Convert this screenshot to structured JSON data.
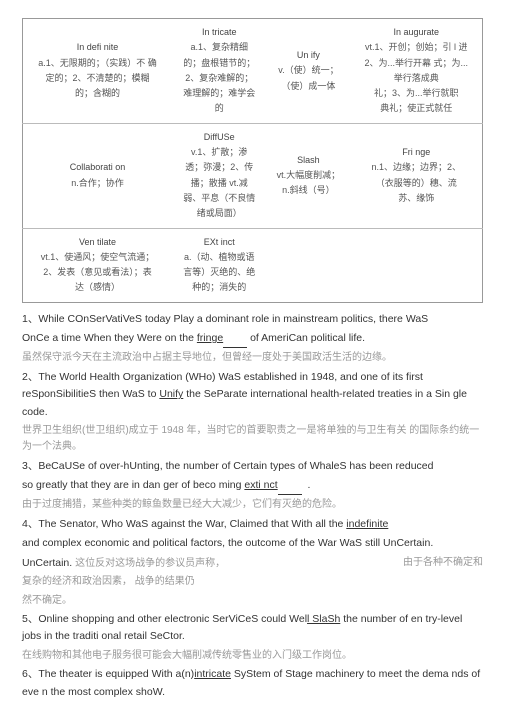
{
  "vocab": [
    {
      "c1": {
        "term": "In defi nite",
        "def": "a.1、无限期的；（实践）不 确\n定的；2、不清楚的；模糊\n的；含糊的"
      },
      "c2": {
        "term": "In tricate",
        "def": "a.1、复杂精细\n的；盘根错节的；\n2、复杂难解的；\n难理解的；难学会\n的"
      },
      "c3": {
        "term": "Un ify",
        "def": "v.（使）统一；\n（使）成一体"
      },
      "c4": {
        "term": "In augurate",
        "def": "vt.1、开创；创始；引 l 进\n2、为...举行开幕 式；为...\n举行落成典\n礼；3、为...举行就职\n典礼；使正式就任"
      }
    },
    {
      "c1": {
        "term": "Collaborati on",
        "def": "n.合作；协作"
      },
      "c2": {
        "term": "DiffUSe",
        "def": "v.1、扩散；渗\n透；弥漫；2、传\n播；散播 vt.减\n弱、平息（不良情\n绪或局面）"
      },
      "c3": {
        "term": "Slash",
        "def": "vt.大幅度削减；\nn.斜线（号）"
      },
      "c4": {
        "term": "Fri nge",
        "def": "n.1、边缘；边界；2、\n（衣服等的）穗、流\n苏、缘饰"
      }
    },
    {
      "c1": {
        "term": "Ven tilate",
        "def": "vt.1、使通风；使空气流通；\n2、发表（意见或看法）；表\n达（感情）"
      },
      "c2": {
        "term": "EXt inct",
        "def": "a.（动、植物或语\n言等）灭绝的、绝\n种的；消失的"
      },
      "c3": {
        "term": "",
        "def": ""
      },
      "c4": {
        "term": "",
        "def": ""
      }
    }
  ],
  "sentences": [
    {
      "en1": "1、While COnSerVatiVeS today Play a dominant role in mainstream politics, there WaS",
      "en2a": "OnCe a time When they Were on the ",
      "u": "fringe",
      "en2b": " of AmeriCan political life.",
      "cn": "虽然保守派今天在主流政治中占据主导地位，但曾经一度处于美国政活生活的边缘。"
    },
    {
      "en1": "2、The World Health Organization (WHo) WaS established in 1948, and one of its first reSponSibilitieS then WaS to ",
      "u": "Unify",
      "en1b": " the SeParate international health-related treaties in a Sin gle code.",
      "cn": "世界卫生组织(世卫组织)成立于 1948 年，当时它的首要职责之一是将单独的与卫生有关 的国际条约统一为一个法典。"
    },
    {
      "en1": "3、BeCaUSe of over-hUnting, the number of Certain types of WhaleS has been reduced",
      "en2a": "so greatly that they are in dan ger of beco ming ",
      "u": "exti nct",
      "en2b": "",
      "cn": "由于过度捕猎，某些种类的鲸鱼数量已经大大减少，它们有灭绝的危险。"
    },
    {
      "en1": "4、The Senator, Who WaS against the War, Claimed that With all the ",
      "u": "indefinite",
      "en1b": "\nand complex economic and political factors, the outcome of the War WaS still UnCertain.",
      "cn1": " 这位反对这场战争的参议员声称，",
      "cn2": "由于各种不确定和",
      "cn3": "复杂的经济和政治因素，                 战争的结果仍",
      "cn4": "然不确定。"
    },
    {
      "en1": "5、Online shopping and other electronic SerViCeS could Wel",
      "u": "l SlaSh",
      "en1b": " the number of en try-level jobs in the traditi onal retail SeCtor.",
      "cn": "在线购物和其他电子服务很可能会大幅削减传统零售业的入门级工作岗位。"
    },
    {
      "en1": "6、The theater is equipped With a(n)",
      "u": "intricate",
      "en1b": " SyStem of Stage machinery to meet the dema nds of eve n the most complex shoW."
    }
  ]
}
